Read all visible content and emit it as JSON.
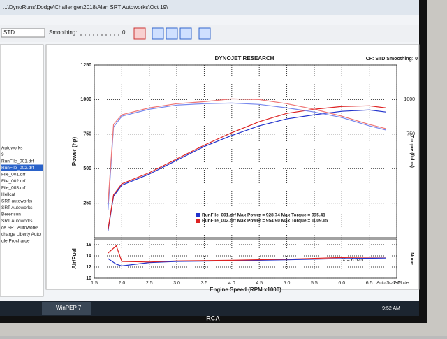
{
  "window": {
    "title": "...\\DynoRuns\\Dodge\\Challenger\\2018\\Alan SRT Autoworks\\Oct 19\\"
  },
  "toolbar": {
    "correction": "STD",
    "smoothing_label": "Smoothing:",
    "smoothing_value": "0"
  },
  "sidebar": {
    "items": [
      "Autoworks",
      "9",
      "RunFile_001.drf",
      "RunFile_002.drf",
      "File_001.drf",
      "File_002.drf",
      "File_003.drf",
      "Hellcat",
      "SRT autoworks",
      "SRT Autoworks",
      "Berenson",
      "SRT Autoworks",
      "ce SRT Autoworks",
      "charge Liberty Auto",
      "gle Procharge"
    ],
    "selected": 3
  },
  "chart_data": [
    {
      "type": "line",
      "title": "DYNOJET RESEARCH",
      "subtitle": "CF: STD  Smoothing: 0",
      "ylabel": "Power (hp)",
      "y2label": "Torque (ft-lbs)",
      "x": [
        1.75,
        1.85,
        2.0,
        2.5,
        3.0,
        3.5,
        4.0,
        4.5,
        5.0,
        5.5,
        6.0,
        6.5,
        6.8
      ],
      "xlim": [
        1.5,
        7.0
      ],
      "ylim": [
        0,
        1250
      ],
      "yticks": [
        250,
        500,
        750,
        1000,
        1250
      ],
      "y2lim": [
        0,
        1250
      ],
      "y2ticks": [
        750,
        1000
      ],
      "grid": true,
      "series": [
        {
          "name": "RunFile_001.drf  Max Power = 928.74  Max Torque = 975.41",
          "color": "#2233cc",
          "values": [
            50,
            300,
            380,
            460,
            560,
            660,
            740,
            810,
            860,
            890,
            915,
            925,
            910
          ]
        },
        {
          "name": "RunFile_002.drf  Max Power = 954.90  Max Torque = 1009.65",
          "color": "#dd2222",
          "values": [
            60,
            310,
            390,
            470,
            570,
            670,
            760,
            840,
            900,
            930,
            950,
            955,
            940
          ]
        },
        {
          "color": "#7788ee",
          "axis": "y2",
          "values": [
            200,
            800,
            880,
            930,
            960,
            970,
            975,
            965,
            940,
            910,
            870,
            810,
            780
          ]
        },
        {
          "color": "#ee7777",
          "axis": "y2",
          "values": [
            250,
            820,
            890,
            940,
            970,
            985,
            1005,
            1000,
            970,
            930,
            880,
            820,
            790
          ]
        }
      ]
    },
    {
      "type": "line",
      "ylabel": "Air/Fuel",
      "xlabel": "Engine Speed (RPM x1000)",
      "y2label": "None",
      "x": [
        1.75,
        1.9,
        2.0,
        2.5,
        3.0,
        4.0,
        5.0,
        6.0,
        6.8
      ],
      "xlim": [
        1.5,
        7.0
      ],
      "ylim": [
        10,
        17
      ],
      "yticks": [
        10,
        12,
        14,
        16
      ],
      "xticks": [
        1.5,
        {
          "value": 2,
          "label": "2.0"
        },
        2.5,
        {
          "value": 3,
          "label": "3.0"
        },
        3.5,
        {
          "value": 4,
          "label": "4.0"
        },
        4.5,
        {
          "value": 5,
          "label": "5.0"
        },
        5.5,
        {
          "value": 6,
          "label": "6.0"
        },
        6.5,
        {
          "value": 7,
          "label": "7.0"
        }
      ],
      "annotation": "X = 6.625",
      "series": [
        {
          "color": "#2233cc",
          "values": [
            13.5,
            12.5,
            12.2,
            12.8,
            13.0,
            13.1,
            13.3,
            13.5,
            13.6
          ]
        },
        {
          "color": "#dd2222",
          "values": [
            14.5,
            15.8,
            13.0,
            12.9,
            13.1,
            13.2,
            13.4,
            13.7,
            13.8
          ]
        }
      ]
    }
  ],
  "status": "Auto Scale Mode",
  "taskbar": {
    "app": "WinPEP 7",
    "time": "9:52 AM"
  },
  "bezel": {
    "brand": "RCA"
  }
}
